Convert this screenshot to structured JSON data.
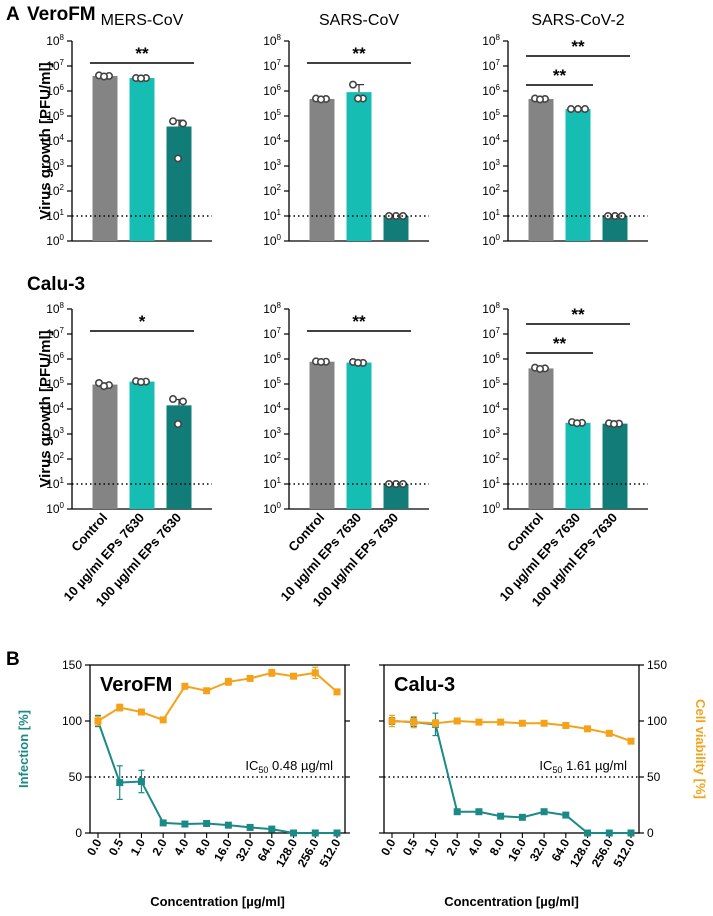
{
  "panel_a": {
    "letter": "A"
  },
  "panel_b": {
    "letter": "B"
  },
  "colors": {
    "control": "#848484",
    "ep10": "#15bdb3",
    "ep100": "#127d78",
    "infection": "#1b8a86",
    "viability": "#f5a21b"
  },
  "chart_data": [
    {
      "type": "bar",
      "row_label": "VeroFM",
      "title": "MERS-CoV",
      "ylabel": "Virus growth [PFU/ml]",
      "yscale": "log",
      "ylim": [
        1,
        100000000
      ],
      "categories": [
        "Control",
        "10 µg/ml EPs 7630",
        "100 µg/ml EPs 7630"
      ],
      "values": [
        4000000,
        3300000,
        38000
      ],
      "points": [
        [
          4200000,
          4000000,
          3800000
        ],
        [
          3300000,
          3300000,
          3200000
        ],
        [
          62000,
          50000,
          2000
        ]
      ],
      "errors": [
        200000,
        100000,
        30000
      ],
      "detection_limit": 10,
      "significance": [
        {
          "from": 0,
          "to": 2,
          "label": "**"
        }
      ]
    },
    {
      "type": "bar",
      "title": "SARS-CoV",
      "yscale": "log",
      "ylim": [
        1,
        100000000
      ],
      "categories": [
        "Control",
        "10 µg/ml EPs 7630",
        "100 µg/ml EPs 7630"
      ],
      "values": [
        480000,
        900000,
        10
      ],
      "points": [
        [
          500000,
          480000,
          460000
        ],
        [
          1800000,
          500000,
          500000
        ],
        [
          10,
          10,
          10
        ]
      ],
      "errors": [
        20000,
        900000,
        0
      ],
      "detection_limit": 10,
      "significance": [
        {
          "from": 0,
          "to": 2,
          "label": "**"
        }
      ]
    },
    {
      "type": "bar",
      "title": "SARS-CoV-2",
      "yscale": "log",
      "ylim": [
        1,
        100000000
      ],
      "categories": [
        "Control",
        "10 µg/ml EPs 7630",
        "100 µg/ml EPs 7630"
      ],
      "values": [
        480000,
        190000,
        10
      ],
      "points": [
        [
          500000,
          480000,
          460000
        ],
        [
          190000,
          190000,
          190000
        ],
        [
          10,
          10,
          10
        ]
      ],
      "errors": [
        30000,
        10000,
        0
      ],
      "detection_limit": 10,
      "significance": [
        {
          "from": 0,
          "to": 1,
          "label": "**"
        },
        {
          "from": 0,
          "to": 2,
          "label": "**"
        }
      ]
    },
    {
      "type": "bar",
      "row_label": "Calu-3",
      "title": "",
      "ylabel": "Virus growth [PFU/ml]",
      "yscale": "log",
      "ylim": [
        1,
        100000000
      ],
      "categories": [
        "Control",
        "10 µg/ml EPs 7630",
        "100 µg/ml EPs 7630"
      ],
      "values": [
        95000,
        125000,
        14000
      ],
      "points": [
        [
          110000,
          90000,
          82000
        ],
        [
          130000,
          125000,
          120000
        ],
        [
          25000,
          20000,
          2500
        ]
      ],
      "errors": [
        15000,
        5000,
        10000
      ],
      "detection_limit": 10,
      "significance": [
        {
          "from": 0,
          "to": 2,
          "label": "*"
        }
      ]
    },
    {
      "type": "bar",
      "title": "",
      "yscale": "log",
      "ylim": [
        1,
        100000000
      ],
      "categories": [
        "Control",
        "10 µg/ml EPs 7630",
        "100 µg/ml EPs 7630"
      ],
      "values": [
        780000,
        720000,
        10
      ],
      "points": [
        [
          800000,
          780000,
          760000
        ],
        [
          760000,
          700000,
          700000
        ],
        [
          10,
          10,
          10
        ]
      ],
      "errors": [
        20000,
        40000,
        0
      ],
      "detection_limit": 10,
      "significance": [
        {
          "from": 0,
          "to": 2,
          "label": "**"
        }
      ]
    },
    {
      "type": "bar",
      "title": "",
      "yscale": "log",
      "ylim": [
        1,
        100000000
      ],
      "categories": [
        "Control",
        "10 µg/ml EPs 7630",
        "100 µg/ml EPs 7630"
      ],
      "values": [
        420000,
        2800,
        2600
      ],
      "points": [
        [
          450000,
          420000,
          400000
        ],
        [
          3000,
          2800,
          2700
        ],
        [
          2700,
          2600,
          2500
        ]
      ],
      "errors": [
        30000,
        300,
        100
      ],
      "detection_limit": 10,
      "significance": [
        {
          "from": 0,
          "to": 1,
          "label": "**"
        },
        {
          "from": 0,
          "to": 2,
          "label": "**"
        }
      ]
    },
    {
      "type": "line",
      "title": "VeroFM",
      "x": [
        "0.0",
        "0.5",
        "1.0",
        "2.0",
        "4.0",
        "8.0",
        "16.0",
        "32.0",
        "64.0",
        "128.0",
        "256.0",
        "512.0"
      ],
      "xlabel": "Concentration [µg/ml]",
      "ylabel_left": "Infection [%]",
      "ylabel_right": "Cell viability [%]",
      "ylim": [
        0,
        150
      ],
      "yticks": [
        0,
        50,
        100,
        150
      ],
      "reference_line": 50,
      "ic50_label": "IC",
      "ic50_sub": "50",
      "ic50_value": " 0.48 µg/ml",
      "series": [
        {
          "name": "Infection",
          "values": [
            100,
            45,
            46,
            9,
            8,
            8.5,
            7,
            5,
            3.5,
            0,
            0,
            0
          ],
          "errors": [
            5,
            15,
            10,
            1,
            1,
            1,
            1,
            1,
            1,
            0,
            0,
            0
          ]
        },
        {
          "name": "Cell viability",
          "values": [
            100,
            112,
            108,
            101,
            131,
            127,
            135,
            138,
            143,
            140,
            143,
            126
          ],
          "errors": [
            4,
            3,
            2,
            2,
            2,
            2,
            3,
            2,
            3,
            2,
            5,
            2
          ]
        }
      ]
    },
    {
      "type": "line",
      "title": "Calu-3",
      "x": [
        "0.0",
        "0.5",
        "1.0",
        "2.0",
        "4.0",
        "8.0",
        "16.0",
        "32.0",
        "64.0",
        "128.0",
        "256.0",
        "512.0"
      ],
      "xlabel": "Concentration [µg/ml]",
      "ylim": [
        0,
        150
      ],
      "yticks": [
        0,
        50,
        100,
        150
      ],
      "reference_line": 50,
      "ic50_label": "IC",
      "ic50_sub": "50",
      "ic50_value": " 1.61 µg/ml",
      "series": [
        {
          "name": "Infection",
          "values": [
            100,
            99,
            97,
            19,
            19,
            15,
            14,
            19,
            16,
            0,
            0,
            0
          ],
          "errors": [
            3,
            4,
            10,
            0.5,
            0.5,
            0.5,
            0.5,
            0.5,
            0.5,
            0,
            0,
            0
          ]
        },
        {
          "name": "Cell viability",
          "values": [
            100,
            99,
            98,
            100,
            99,
            99,
            98,
            98,
            96,
            93,
            89,
            82
          ],
          "errors": [
            5,
            5,
            3,
            2,
            1,
            1,
            1,
            1,
            1,
            1,
            1,
            1
          ]
        }
      ]
    }
  ]
}
